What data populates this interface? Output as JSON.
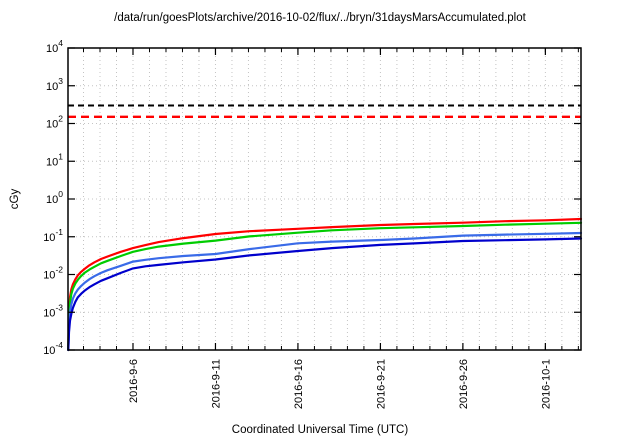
{
  "title": "/data/run/goesPlots/archive/2016-10-02/flux/../bryn/31daysMarsAccumulated.plot",
  "chart_data": {
    "type": "line",
    "title": "/data/run/goesPlots/archive/2016-10-02/flux/../bryn/31daysMarsAccumulated.plot",
    "xlabel": "Coordinated Universal Time (UTC)",
    "ylabel": "cGy",
    "y_scale": "log",
    "ylim": [
      0.0001,
      10000
    ],
    "ylim_exponents": [
      -4,
      4
    ],
    "x_range_days": [
      0,
      31.1
    ],
    "x_start_date": "2016-09-02",
    "x_end_date": "2016-10-03",
    "grid": {
      "style": "dotted",
      "color": "#c4c4c4",
      "x_start_day": 0.94,
      "x_step_days": 1,
      "x_count": 31
    },
    "x_ticks": [
      {
        "label": "2016-9-6",
        "day": 3.94
      },
      {
        "label": "2016-9-11",
        "day": 8.94
      },
      {
        "label": "2016-9-16",
        "day": 13.94
      },
      {
        "label": "2016-9-21",
        "day": 18.94
      },
      {
        "label": "2016-9-26",
        "day": 23.94
      },
      {
        "label": "2016-10-1",
        "day": 28.94
      }
    ],
    "y_tick_exponents": [
      4,
      3,
      2,
      1,
      0,
      -1,
      -2,
      -3,
      -4
    ],
    "legend": "none",
    "reference_lines": [
      {
        "name": "black-dose-limit",
        "value_cgy": 300,
        "color": "#000000",
        "style": "dashed"
      },
      {
        "name": "red-dose-limit",
        "value_cgy": 150,
        "color": "#ff0000",
        "style": "dashed"
      }
    ],
    "series": [
      {
        "name": "red-accumulated-dose",
        "color": "#ff0000",
        "points": [
          [
            0.02,
            0.0001
          ],
          [
            0.06,
            0.0012
          ],
          [
            0.12,
            0.0025
          ],
          [
            0.2,
            0.004
          ],
          [
            0.3,
            0.0055
          ],
          [
            0.45,
            0.0075
          ],
          [
            0.6,
            0.0095
          ],
          [
            0.8,
            0.0118
          ],
          [
            1.0,
            0.014
          ],
          [
            1.3,
            0.0175
          ],
          [
            1.6,
            0.021
          ],
          [
            2.0,
            0.0258
          ],
          [
            2.4,
            0.03
          ],
          [
            3.2,
            0.04
          ],
          [
            3.94,
            0.05
          ],
          [
            4.7,
            0.06
          ],
          [
            5.5,
            0.072
          ],
          [
            7.0,
            0.092
          ],
          [
            8.94,
            0.118
          ],
          [
            11.0,
            0.14
          ],
          [
            13.94,
            0.162
          ],
          [
            16.0,
            0.18
          ],
          [
            18.94,
            0.205
          ],
          [
            21.0,
            0.217
          ],
          [
            23.94,
            0.236
          ],
          [
            26.5,
            0.258
          ],
          [
            28.94,
            0.273
          ],
          [
            31.1,
            0.295
          ]
        ]
      },
      {
        "name": "green-accumulated-dose",
        "color": "#00cc00",
        "points": [
          [
            0.02,
            0.0001
          ],
          [
            0.06,
            0.0009
          ],
          [
            0.12,
            0.0018
          ],
          [
            0.2,
            0.003
          ],
          [
            0.3,
            0.0042
          ],
          [
            0.45,
            0.0058
          ],
          [
            0.6,
            0.0073
          ],
          [
            0.8,
            0.0092
          ],
          [
            1.0,
            0.011
          ],
          [
            1.3,
            0.0135
          ],
          [
            1.6,
            0.016
          ],
          [
            2.0,
            0.0198
          ],
          [
            2.4,
            0.023
          ],
          [
            3.2,
            0.031
          ],
          [
            3.94,
            0.04
          ],
          [
            4.7,
            0.047
          ],
          [
            5.5,
            0.055
          ],
          [
            7.0,
            0.066
          ],
          [
            8.94,
            0.079
          ],
          [
            11.0,
            0.102
          ],
          [
            13.94,
            0.128
          ],
          [
            16.0,
            0.148
          ],
          [
            18.94,
            0.168
          ],
          [
            21.0,
            0.178
          ],
          [
            23.94,
            0.193
          ],
          [
            26.5,
            0.209
          ],
          [
            28.94,
            0.221
          ],
          [
            31.1,
            0.234
          ]
        ]
      },
      {
        "name": "light-blue-accumulated-dose",
        "color": "#3a6be8",
        "points": [
          [
            0.02,
            0.0001
          ],
          [
            0.06,
            0.0005
          ],
          [
            0.12,
            0.001
          ],
          [
            0.2,
            0.0016
          ],
          [
            0.3,
            0.0023
          ],
          [
            0.45,
            0.0032
          ],
          [
            0.6,
            0.004
          ],
          [
            0.8,
            0.005
          ],
          [
            1.0,
            0.006
          ],
          [
            1.3,
            0.0075
          ],
          [
            1.6,
            0.009
          ],
          [
            2.0,
            0.011
          ],
          [
            2.4,
            0.013
          ],
          [
            3.2,
            0.017
          ],
          [
            3.94,
            0.022
          ],
          [
            4.7,
            0.0245
          ],
          [
            5.5,
            0.027
          ],
          [
            7.0,
            0.031
          ],
          [
            8.94,
            0.035
          ],
          [
            11.0,
            0.047
          ],
          [
            13.94,
            0.067
          ],
          [
            16.0,
            0.0745
          ],
          [
            18.94,
            0.082
          ],
          [
            21.0,
            0.09
          ],
          [
            23.94,
            0.107
          ],
          [
            26.5,
            0.114
          ],
          [
            28.94,
            0.12
          ],
          [
            31.1,
            0.126
          ]
        ]
      },
      {
        "name": "dark-blue-accumulated-dose",
        "color": "#0000cc",
        "points": [
          [
            0.02,
            0.0001
          ],
          [
            0.06,
            0.0003
          ],
          [
            0.12,
            0.0006
          ],
          [
            0.2,
            0.0009
          ],
          [
            0.3,
            0.0013
          ],
          [
            0.45,
            0.0019
          ],
          [
            0.6,
            0.0025
          ],
          [
            0.8,
            0.0031
          ],
          [
            1.0,
            0.0037
          ],
          [
            1.3,
            0.0046
          ],
          [
            1.6,
            0.0055
          ],
          [
            2.0,
            0.0068
          ],
          [
            2.4,
            0.008
          ],
          [
            3.2,
            0.011
          ],
          [
            3.94,
            0.0145
          ],
          [
            4.7,
            0.0165
          ],
          [
            5.5,
            0.018
          ],
          [
            7.0,
            0.021
          ],
          [
            8.94,
            0.025
          ],
          [
            11.0,
            0.032
          ],
          [
            13.94,
            0.042
          ],
          [
            16.0,
            0.05
          ],
          [
            18.94,
            0.061
          ],
          [
            21.0,
            0.0665
          ],
          [
            23.94,
            0.077
          ],
          [
            26.5,
            0.081
          ],
          [
            28.94,
            0.085
          ],
          [
            31.1,
            0.09
          ]
        ]
      }
    ]
  }
}
